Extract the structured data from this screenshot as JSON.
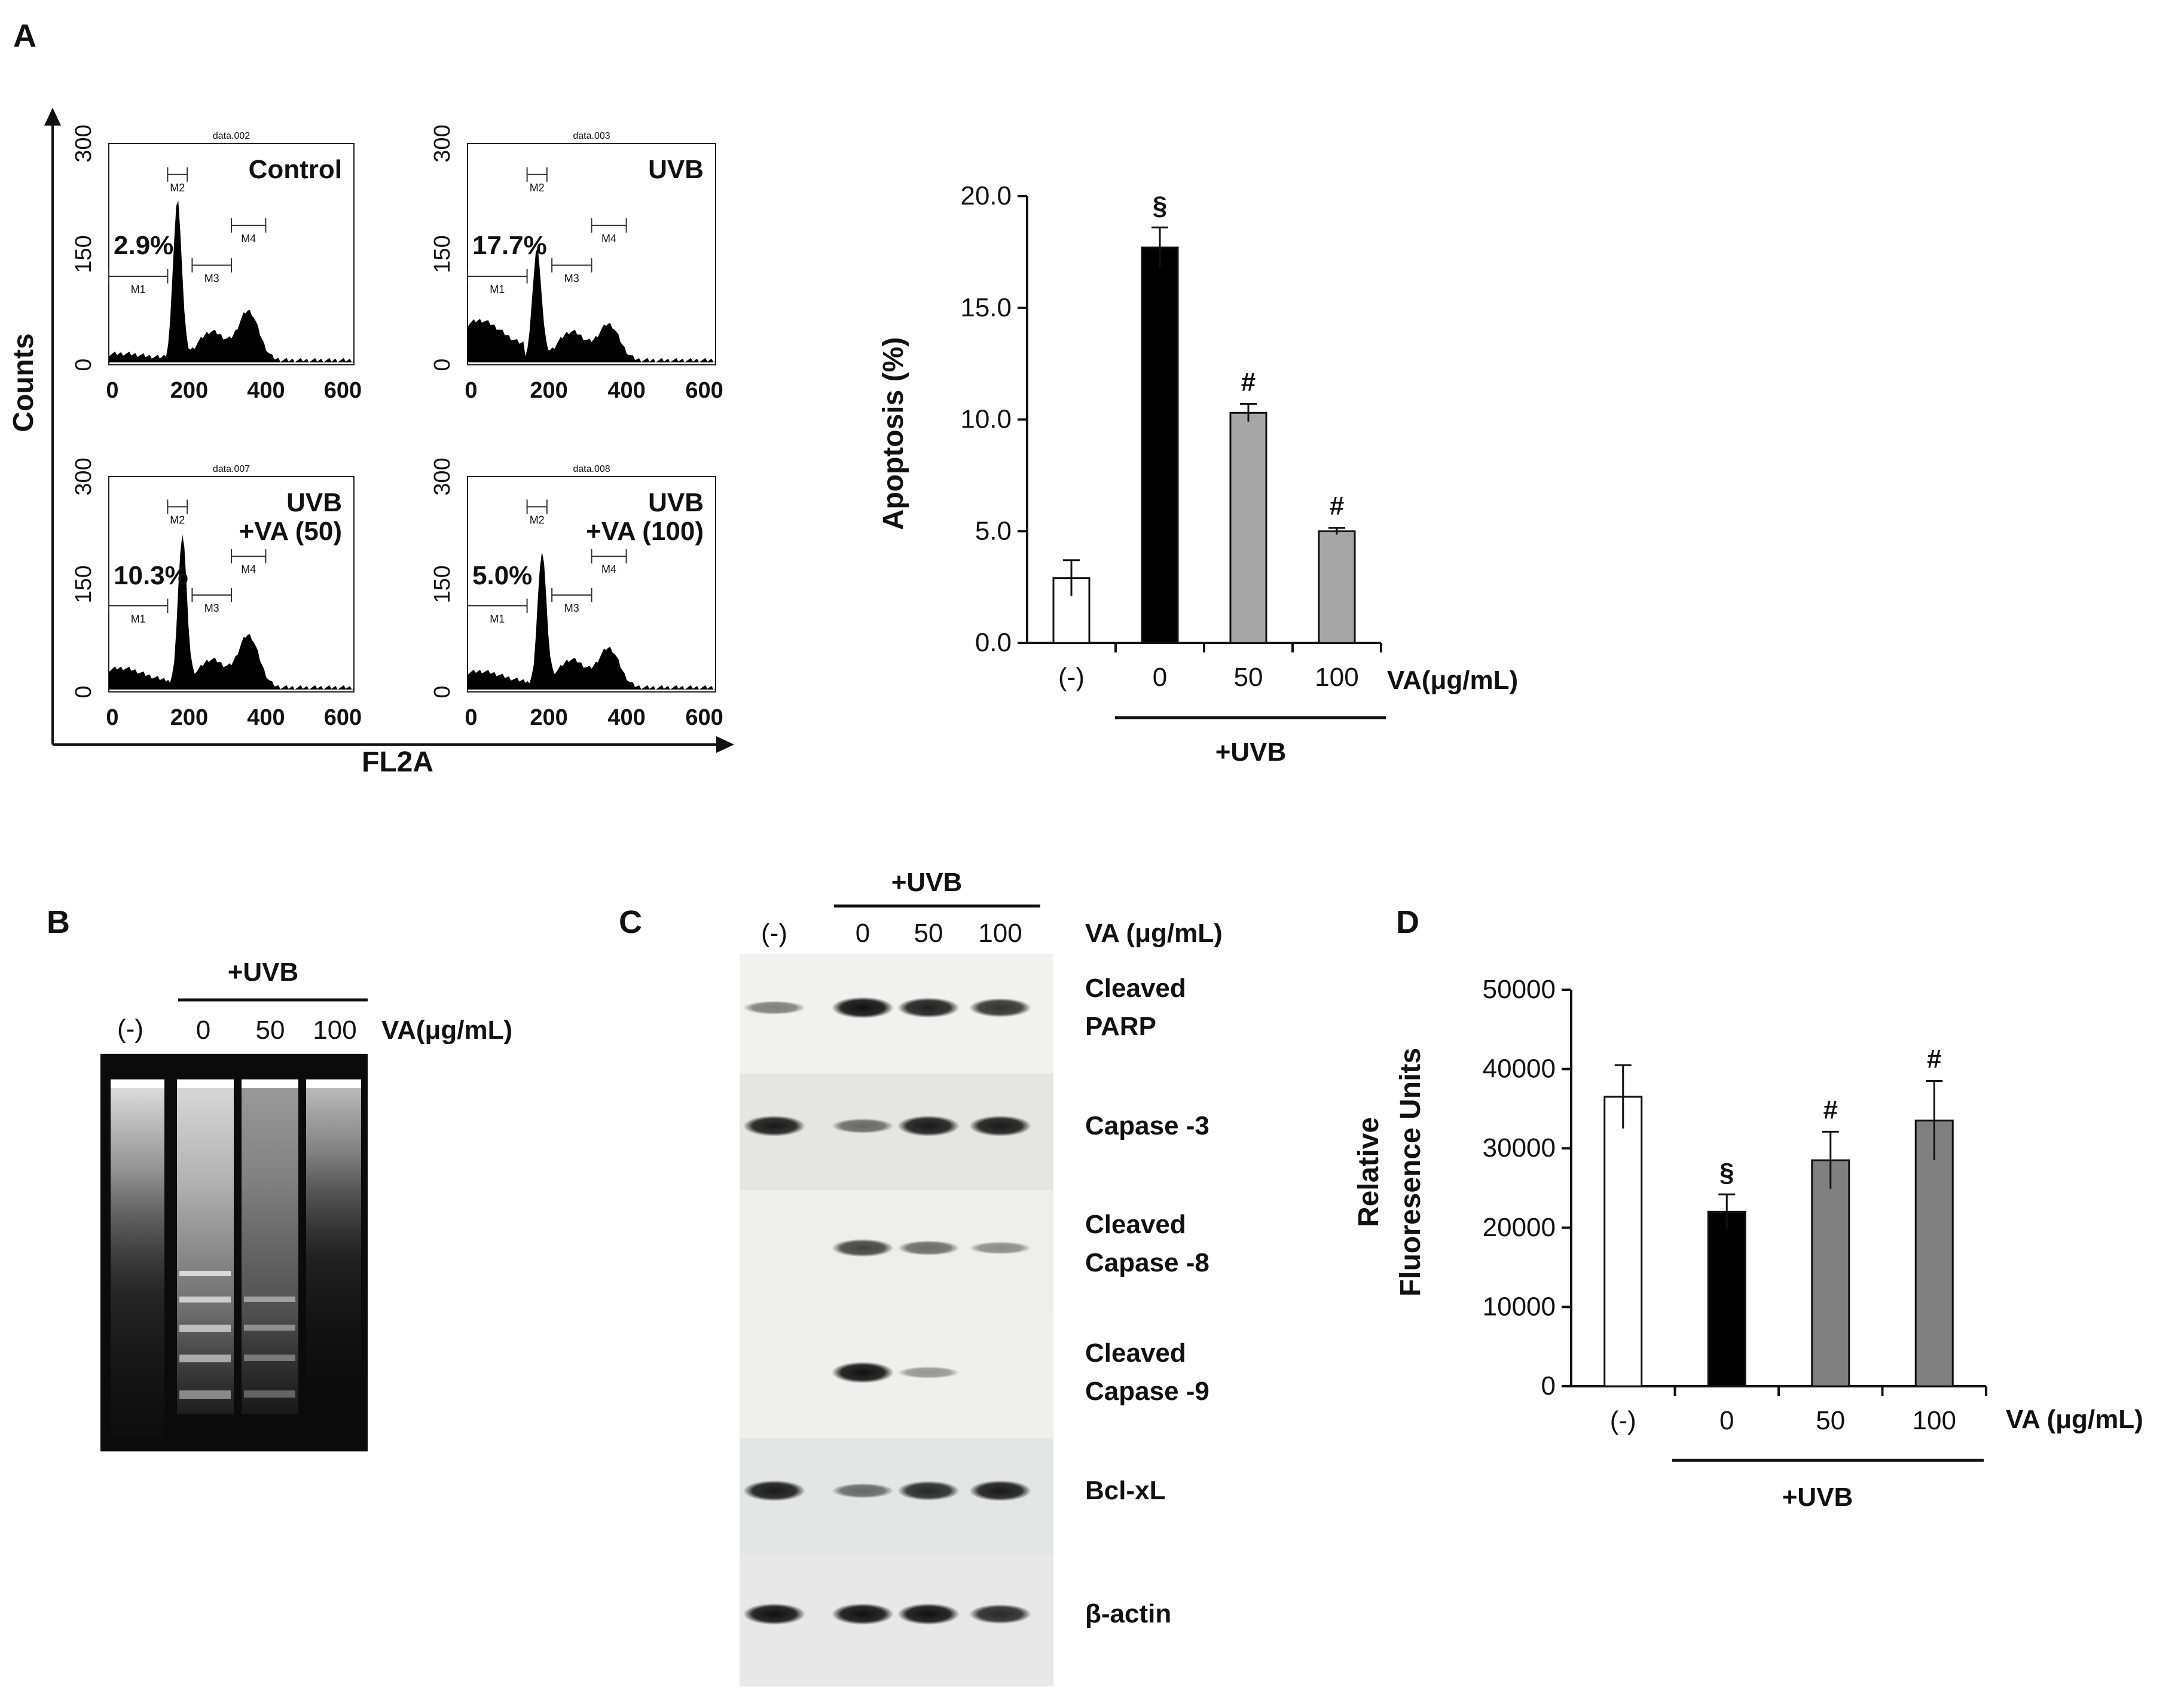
{
  "panels": {
    "A": {
      "letter": "A",
      "flow": {
        "y_axis_label": "Counts",
        "x_axis_label": "FL2A",
        "y_ticks": [
          "0",
          "150",
          "300"
        ],
        "x_ticks": [
          "0",
          "200",
          "400",
          "600"
        ],
        "plots": [
          {
            "file": "data.002",
            "condition": [
              "Control"
            ],
            "percent": "2.9%"
          },
          {
            "file": "data.003",
            "condition": [
              "UVB"
            ],
            "percent": "17.7%"
          },
          {
            "file": "data.007",
            "condition": [
              "UVB",
              "+VA (50)"
            ],
            "percent": "10.3%"
          },
          {
            "file": "data.008",
            "condition": [
              "UVB",
              "+VA (100)"
            ],
            "percent": "5.0%"
          }
        ],
        "markers": [
          "M1",
          "M2",
          "M3",
          "M4"
        ]
      },
      "bar_chart": {
        "ylabel": "Apoptosis (%)",
        "y_ticks": [
          "0.0",
          "5.0",
          "10.0",
          "15.0",
          "20.0"
        ],
        "xunit": "VA(μg/mL)",
        "group_label": "+UVB"
      }
    },
    "B": {
      "letter": "B",
      "group_label": "+UVB",
      "lanes": [
        "(-)",
        "0",
        "50",
        "100"
      ],
      "unit": "VA(μg/mL)"
    },
    "C": {
      "letter": "C",
      "group_label": "+UVB",
      "lanes": [
        "(-)",
        "0",
        "50",
        "100"
      ],
      "unit": "VA (μg/mL)",
      "blots": [
        {
          "label": [
            "Cleaved",
            "PARP"
          ],
          "intensity": [
            0.35,
            1.0,
            0.9,
            0.8
          ]
        },
        {
          "label": [
            "Capase -3"
          ],
          "intensity": [
            0.95,
            0.45,
            0.95,
            0.95
          ]
        },
        {
          "label": [
            "Cleaved",
            "Capase -8"
          ],
          "intensity": [
            0.0,
            0.7,
            0.45,
            0.25
          ]
        },
        {
          "label": [
            "Cleaved",
            "Capase -9"
          ],
          "intensity": [
            0.0,
            1.0,
            0.2,
            0.0
          ]
        },
        {
          "label": [
            "Bcl-xL"
          ],
          "intensity": [
            0.95,
            0.45,
            0.85,
            0.95
          ]
        },
        {
          "label": [
            "β-actin"
          ],
          "intensity": [
            1.0,
            1.0,
            1.0,
            0.85
          ]
        }
      ]
    },
    "D": {
      "letter": "D",
      "ylabel": [
        "Relative",
        "Fluoresence Units"
      ],
      "y_ticks": [
        "0",
        "10000",
        "20000",
        "30000",
        "40000",
        "50000"
      ],
      "xunit": "VA (μg/mL)",
      "group_label": "+UVB"
    }
  },
  "chart_data": [
    {
      "type": "bar",
      "panel": "A",
      "categories": [
        "(-)",
        "0",
        "50",
        "100"
      ],
      "values": [
        2.9,
        17.7,
        10.3,
        5.0
      ],
      "errors": [
        0.8,
        0.9,
        0.4,
        0.15
      ],
      "annotations": [
        "",
        "§",
        "#",
        "#"
      ],
      "bar_colors": [
        "#ffffff",
        "#000000",
        "#a6a6a6",
        "#a6a6a6"
      ],
      "ylabel": "Apoptosis (%)",
      "xlabel": "VA(μg/mL)",
      "ylim": [
        0,
        20
      ]
    },
    {
      "type": "bar",
      "panel": "D",
      "categories": [
        "(-)",
        "0",
        "50",
        "100"
      ],
      "values": [
        36500,
        22000,
        28500,
        33500
      ],
      "errors": [
        4000,
        2200,
        3600,
        5000
      ],
      "annotations": [
        "",
        "§",
        "#",
        "#"
      ],
      "bar_colors": [
        "#ffffff",
        "#000000",
        "#808080",
        "#808080"
      ],
      "ylabel": "Relative Fluoresence Units",
      "xlabel": "VA (μg/mL)",
      "ylim": [
        0,
        50000
      ]
    }
  ]
}
